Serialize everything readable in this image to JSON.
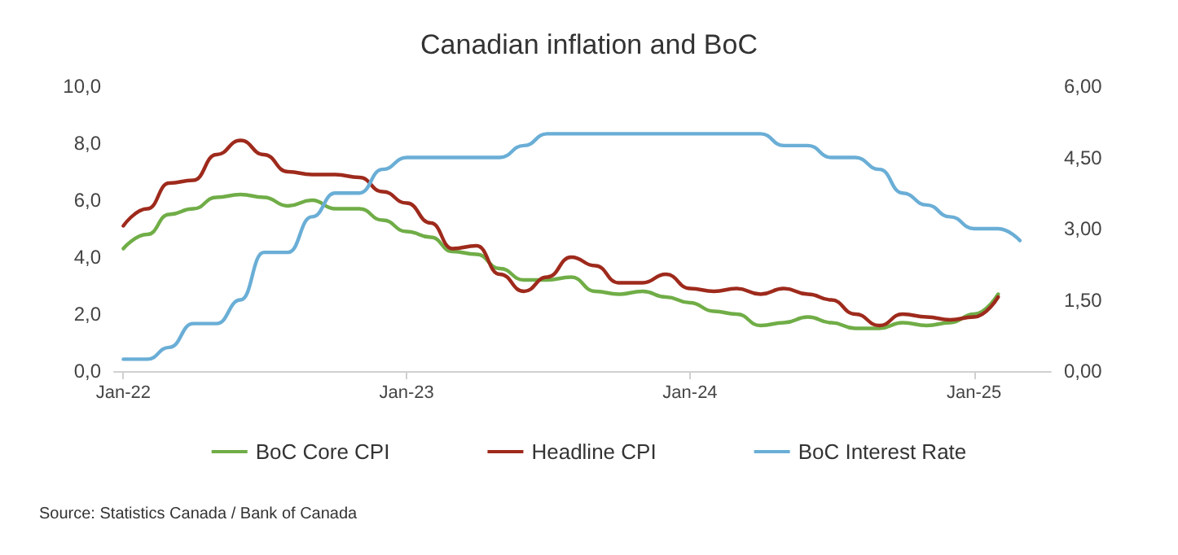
{
  "chart_data": {
    "type": "line",
    "title": "Canadian inflation and BoC",
    "x": [
      "2022-01",
      "2022-02",
      "2022-03",
      "2022-04",
      "2022-05",
      "2022-06",
      "2022-07",
      "2022-08",
      "2022-09",
      "2022-10",
      "2022-11",
      "2022-12",
      "2023-01",
      "2023-02",
      "2023-03",
      "2023-04",
      "2023-05",
      "2023-06",
      "2023-07",
      "2023-08",
      "2023-09",
      "2023-10",
      "2023-11",
      "2023-12",
      "2024-01",
      "2024-02",
      "2024-03",
      "2024-04",
      "2024-05",
      "2024-06",
      "2024-07",
      "2024-08",
      "2024-09",
      "2024-10",
      "2024-11",
      "2024-12",
      "2025-01",
      "2025-02"
    ],
    "series": [
      {
        "name": "BoC Core CPI",
        "color": "#70ad47",
        "values": [
          4.3,
          4.8,
          5.5,
          5.7,
          6.1,
          6.2,
          6.1,
          5.8,
          6.0,
          5.7,
          5.7,
          5.3,
          4.9,
          4.7,
          4.2,
          4.1,
          3.6,
          3.2,
          3.2,
          3.3,
          2.8,
          2.7,
          2.8,
          2.6,
          2.4,
          2.1,
          2.0,
          1.6,
          1.7,
          1.9,
          1.7,
          1.5,
          1.5,
          1.7,
          1.6,
          1.7,
          2.0,
          2.7
        ]
      },
      {
        "name": "Headline CPI",
        "color": "#9e2a1c",
        "values": [
          5.1,
          5.7,
          6.6,
          6.7,
          7.6,
          8.1,
          7.6,
          7.0,
          6.9,
          6.9,
          6.8,
          6.3,
          5.9,
          5.2,
          4.3,
          4.4,
          3.4,
          2.8,
          3.3,
          4.0,
          3.7,
          3.1,
          3.1,
          3.4,
          2.9,
          2.8,
          2.9,
          2.7,
          2.9,
          2.7,
          2.5,
          2.0,
          1.6,
          2.0,
          1.9,
          1.8,
          1.9,
          2.6
        ]
      },
      {
        "name": "BoC Interest Rate",
        "color": "#6aaed6",
        "axis": "y2",
        "x": [
          "2022-01",
          "2022-02",
          "2022-03",
          "2022-04",
          "2022-05",
          "2022-06",
          "2022-07",
          "2022-08",
          "2022-09",
          "2022-10",
          "2022-11",
          "2022-12",
          "2023-01",
          "2023-02",
          "2023-03",
          "2023-04",
          "2023-05",
          "2023-06",
          "2023-07",
          "2023-08",
          "2023-09",
          "2023-10",
          "2023-11",
          "2023-12",
          "2024-01",
          "2024-02",
          "2024-03",
          "2024-04",
          "2024-05",
          "2024-06",
          "2024-07",
          "2024-08",
          "2024-09",
          "2024-10",
          "2024-11",
          "2024-12",
          "2025-01",
          "2025-02",
          "2025-03"
        ],
        "values": [
          0.25,
          0.25,
          0.5,
          1.0,
          1.0,
          1.5,
          2.5,
          2.5,
          3.25,
          3.75,
          3.75,
          4.25,
          4.5,
          4.5,
          4.5,
          4.5,
          4.5,
          4.75,
          5.0,
          5.0,
          5.0,
          5.0,
          5.0,
          5.0,
          5.0,
          5.0,
          5.0,
          5.0,
          4.75,
          4.75,
          4.5,
          4.5,
          4.25,
          3.75,
          3.5,
          3.25,
          3.0,
          3.0,
          2.75
        ]
      }
    ],
    "xlim": [
      "2021-12-20",
      "2025-04-10"
    ],
    "xticks": [
      {
        "value": "2022-01",
        "label": "Jan-22"
      },
      {
        "value": "2023-01",
        "label": "Jan-23"
      },
      {
        "value": "2024-01",
        "label": "Jan-24"
      },
      {
        "value": "2025-01",
        "label": "Jan-25"
      }
    ],
    "ylim": [
      0,
      10
    ],
    "yticks": [
      {
        "value": 0,
        "label": "0,0"
      },
      {
        "value": 2,
        "label": "2,0"
      },
      {
        "value": 4,
        "label": "4,0"
      },
      {
        "value": 6,
        "label": "6,0"
      },
      {
        "value": 8,
        "label": "8,0"
      },
      {
        "value": 10,
        "label": "10,0"
      }
    ],
    "y2lim": [
      0,
      6
    ],
    "y2ticks": [
      {
        "value": 0,
        "label": "0,00"
      },
      {
        "value": 1.5,
        "label": "1,50"
      },
      {
        "value": 3,
        "label": "3,00"
      },
      {
        "value": 4.5,
        "label": "4,50"
      },
      {
        "value": 6,
        "label": "6,00"
      }
    ],
    "grid": false,
    "legend": "bottom",
    "annotations": [
      "Source: Statistics Canada / Bank of Canada"
    ]
  }
}
